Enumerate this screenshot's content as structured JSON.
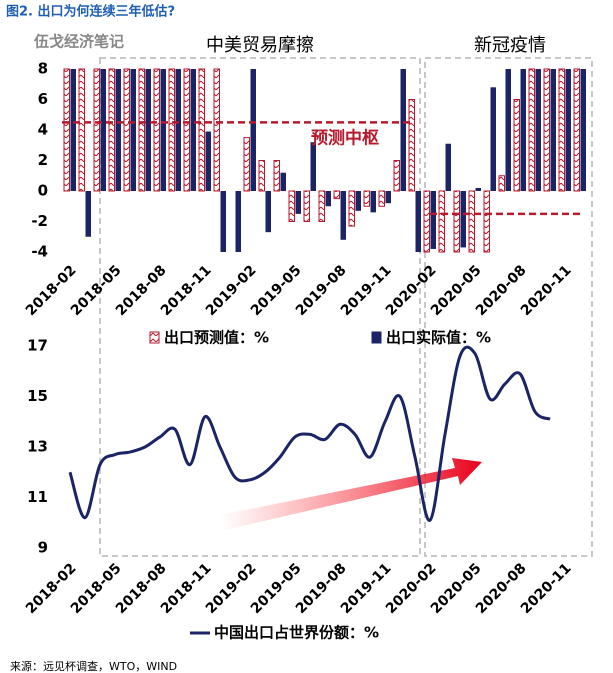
{
  "header": {
    "title": "图2. 出口为何连续三年低估?",
    "watermark": "伍戈经济笔记"
  },
  "source": "来源：远见杯调查，WTO，WIND",
  "chart_data": [
    {
      "type": "bar",
      "categories": [
        "2018-02",
        null,
        null,
        "2018-05",
        null,
        null,
        "2018-08",
        null,
        null,
        "2018-11",
        null,
        null,
        "2019-02",
        null,
        null,
        "2019-05",
        null,
        null,
        "2019-08",
        null,
        null,
        "2019-11",
        null,
        null,
        "2020-02",
        null,
        null,
        "2020-05",
        null,
        null,
        "2020-08",
        null,
        null,
        "2020-11",
        null
      ],
      "series": [
        {
          "name": "出口预测值：%",
          "color": "#b8192c",
          "pattern": true,
          "values": [
            8,
            8,
            8,
            8,
            8,
            8,
            8,
            8,
            8,
            8,
            8,
            null,
            3.5,
            2,
            2,
            -2,
            -2,
            -2,
            -0.5,
            -2.3,
            -1,
            -1,
            2,
            6,
            -4,
            -4,
            -4,
            -4,
            -4,
            1,
            6,
            8,
            8,
            8,
            8
          ]
        },
        {
          "name": "出口实际值：%",
          "color": "#1b2466",
          "values": [
            8,
            -3,
            8,
            8,
            8,
            8,
            8,
            8,
            8,
            3.9,
            -4,
            -4,
            8,
            -2.7,
            1.2,
            -1.5,
            3.2,
            -1,
            -3.2,
            -1.3,
            -1.4,
            -0.8,
            8,
            -4,
            -3.8,
            3.1,
            -3.7,
            0.2,
            6.8,
            8,
            8,
            8,
            8,
            8,
            8
          ]
        }
      ],
      "ylim": [
        -4,
        8
      ],
      "yticks": [
        -4,
        -2,
        0,
        2,
        4,
        6,
        8
      ],
      "yticks_labels_note": null,
      "annotations": [
        {
          "text": "中美贸易摩擦"
        },
        {
          "text": "新冠疫情"
        }
      ],
      "reference_lines": [
        {
          "label": "预测中枢",
          "value": 4.5,
          "color": "#b8192c"
        },
        {
          "value": -1.5,
          "color": "#b8192c"
        }
      ]
    },
    {
      "type": "line",
      "categories": [
        "2018-02",
        null,
        null,
        "2018-05",
        null,
        null,
        "2018-08",
        null,
        null,
        "2018-11",
        null,
        null,
        "2019-02",
        null,
        null,
        "2019-05",
        null,
        null,
        "2019-08",
        null,
        null,
        "2019-11",
        null,
        null,
        "2020-02",
        null,
        null,
        "2020-05",
        null,
        null,
        "2020-08",
        null,
        null,
        "2020-11"
      ],
      "series": [
        {
          "name": "中国出口占世界份额：%",
          "color": "#1b2466",
          "values": [
            12.0,
            10.2,
            12.3,
            12.7,
            12.8,
            13.0,
            13.4,
            13.7,
            12.3,
            14.2,
            13.0,
            11.8,
            11.7,
            12.0,
            12.6,
            13.4,
            13.5,
            13.3,
            13.9,
            13.5,
            12.6,
            14.0,
            15.0,
            12.6,
            10.1,
            13.5,
            16.6,
            16.7,
            14.9,
            15.5,
            15.9,
            14.4,
            14.1,
            null
          ]
        }
      ],
      "ylim": [
        9,
        17
      ],
      "yticks": [
        9,
        11,
        13,
        15,
        17
      ]
    }
  ]
}
